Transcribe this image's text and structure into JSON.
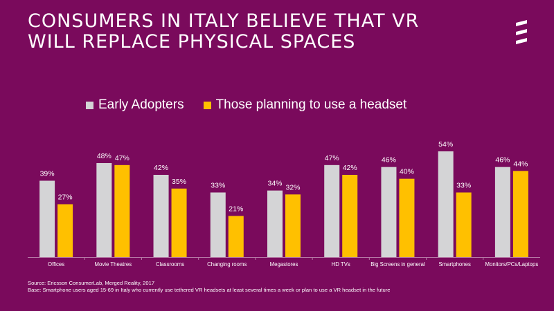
{
  "title_lines": [
    "CONSUMERS IN ITALY BELIEVE THAT VR",
    "WILL REPLACE PHYSICAL SPACES"
  ],
  "logo_icon": "ericsson-logo-icon",
  "colors": {
    "background": "#7a0a5c",
    "early_adopters": "#d4d4d6",
    "planning": "#ffc000",
    "text": "#ffffff"
  },
  "chart_data": {
    "type": "bar",
    "categories": [
      "Offices",
      "Movie Theatres",
      "Classrooms",
      "Changing rooms",
      "Megastores",
      "HD TVs",
      "Big Screens in general",
      "Smartphones",
      "Monitors/PCs/Laptops"
    ],
    "series": [
      {
        "name": "Early Adopters",
        "values": [
          39,
          48,
          42,
          33,
          34,
          47,
          46,
          54,
          46
        ]
      },
      {
        "name": "Those planning to use a headset",
        "values": [
          27,
          47,
          35,
          21,
          32,
          42,
          40,
          33,
          44
        ]
      }
    ],
    "value_suffix": "%",
    "ylim": [
      0,
      54
    ],
    "legend_position": "top-left",
    "grid": false,
    "data_labels": true
  },
  "footnote": {
    "source": "Source: Ericsson ConsumerLab, Merged Reality, 2017",
    "base": "Base: Smartphone users aged 15-69  in Italy who currently use tethered VR headsets at least several times a week or plan to use a VR headset in the future"
  }
}
